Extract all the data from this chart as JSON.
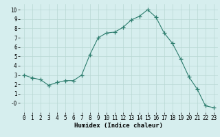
{
  "x": [
    0,
    1,
    2,
    3,
    4,
    5,
    6,
    7,
    8,
    9,
    10,
    11,
    12,
    13,
    14,
    15,
    16,
    17,
    18,
    19,
    20,
    21,
    22,
    23
  ],
  "y": [
    3.0,
    2.7,
    2.5,
    1.9,
    2.2,
    2.4,
    2.4,
    3.0,
    5.2,
    7.0,
    7.5,
    7.6,
    8.1,
    8.9,
    9.3,
    10.0,
    9.2,
    7.5,
    6.4,
    4.7,
    2.8,
    1.5,
    -0.3,
    -0.5
  ],
  "line_color": "#2d7d6e",
  "marker": "+",
  "marker_size": 4,
  "xlabel": "Humidex (Indice chaleur)",
  "xlim": [
    -0.5,
    23.5
  ],
  "ylim": [
    -1.0,
    10.6
  ],
  "yticks": [
    0,
    1,
    2,
    3,
    4,
    5,
    6,
    7,
    8,
    9,
    10
  ],
  "ytick_labels": [
    "-0",
    "1",
    "2",
    "3",
    "4",
    "5",
    "6",
    "7",
    "8",
    "9",
    "10"
  ],
  "xticks": [
    0,
    1,
    2,
    3,
    4,
    5,
    6,
    7,
    8,
    9,
    10,
    11,
    12,
    13,
    14,
    15,
    16,
    17,
    18,
    19,
    20,
    21,
    22,
    23
  ],
  "bg_color": "#d6eeee",
  "grid_color": "#b8d8d4",
  "label_fontsize": 6.5,
  "tick_fontsize": 5.5
}
